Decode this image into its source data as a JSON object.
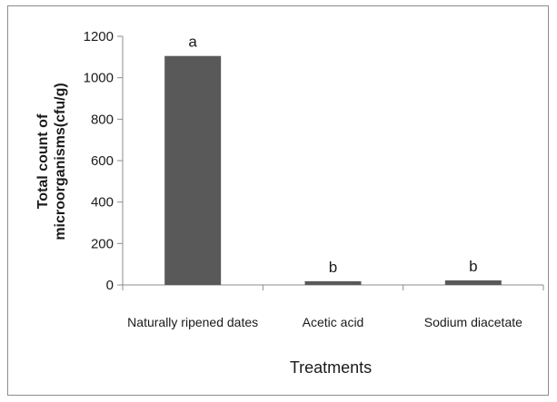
{
  "chart_data": {
    "type": "bar",
    "categories": [
      "Naturally ripened dates",
      "Acetic acid",
      "Sodium diacetate"
    ],
    "values": [
      1105,
      18,
      22
    ],
    "data_labels": [
      "a",
      "b",
      "b"
    ],
    "xlabel": "Treatments",
    "ylabel_lines": [
      "Total count of",
      "microorganisms(cfu/g)"
    ],
    "ylim": [
      0,
      1200
    ],
    "yticks": [
      0,
      200,
      400,
      600,
      800,
      1000,
      1200
    ],
    "grid": false,
    "legend": "none",
    "bar_color": "#595959"
  }
}
